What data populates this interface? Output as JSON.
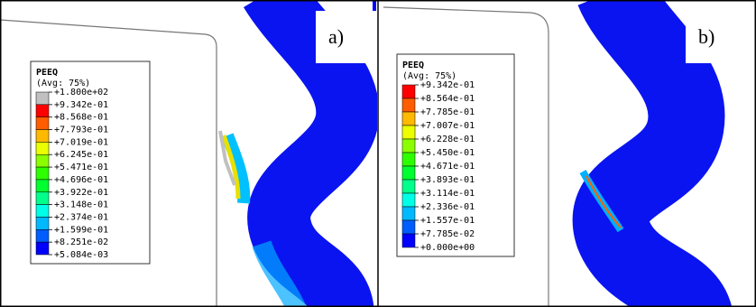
{
  "panels": [
    {
      "label": "a)",
      "legend": {
        "title": "PEEQ",
        "subtitle": "(Avg: 75%)",
        "labels": [
          "+1.800e+02",
          "+9.342e-01",
          "+8.568e-01",
          "+7.793e-01",
          "+7.019e-01",
          "+6.245e-01",
          "+5.471e-01",
          "+4.696e-01",
          "+3.922e-01",
          "+3.148e-01",
          "+2.374e-01",
          "+1.599e-01",
          "+8.251e-02",
          "+5.084e-03"
        ],
        "colors": [
          "#c0c0c0",
          "#ff0000",
          "#ff5d00",
          "#ffb900",
          "#ebff00",
          "#8bff00",
          "#2eff00",
          "#00ff2e",
          "#00ff8b",
          "#00ffe7",
          "#00b9ff",
          "#005dff",
          "#0000ff"
        ]
      }
    },
    {
      "label": "b)",
      "legend": {
        "title": "PEEQ",
        "subtitle": "(Avg: 75%)",
        "labels": [
          "+9.342e-01",
          "+8.564e-01",
          "+7.785e-01",
          "+7.007e-01",
          "+6.228e-01",
          "+5.450e-01",
          "+4.671e-01",
          "+3.893e-01",
          "+3.114e-01",
          "+2.336e-01",
          "+1.557e-01",
          "+7.785e-02",
          "+0.000e+00"
        ],
        "colors": [
          "#ff0000",
          "#ff5d00",
          "#ffb900",
          "#ebff00",
          "#8bff00",
          "#2eff00",
          "#00ff2e",
          "#00ff8b",
          "#00ffe7",
          "#00b9ff",
          "#005dff",
          "#0000ff"
        ]
      }
    }
  ]
}
